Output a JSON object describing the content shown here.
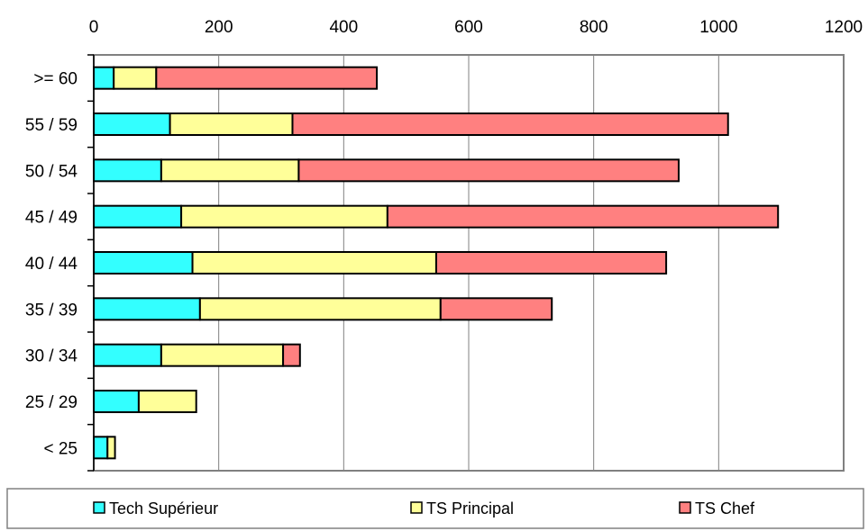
{
  "chart_data": {
    "type": "bar",
    "orientation": "horizontal",
    "stacked": true,
    "categories": [
      ">= 60",
      "55 / 59",
      "50 / 54",
      "45 / 49",
      "40 / 44",
      "35 / 39",
      "30 / 34",
      "25 / 29",
      "< 25"
    ],
    "series": [
      {
        "name": "Tech Supérieur",
        "color": "#33ffff",
        "values": [
          32,
          122,
          108,
          140,
          158,
          170,
          108,
          72,
          22
        ]
      },
      {
        "name": "TS Principal",
        "color": "#ffff99",
        "values": [
          68,
          196,
          220,
          330,
          390,
          385,
          195,
          92,
          12
        ]
      },
      {
        "name": "TS Chef",
        "color": "#ff8080",
        "values": [
          353,
          697,
          608,
          625,
          368,
          178,
          27,
          0,
          0
        ]
      }
    ],
    "xlim": [
      0,
      1200
    ],
    "xticks": [
      0,
      200,
      400,
      600,
      800,
      1000,
      1200
    ],
    "grid": "vertical",
    "legend_position": "bottom"
  }
}
